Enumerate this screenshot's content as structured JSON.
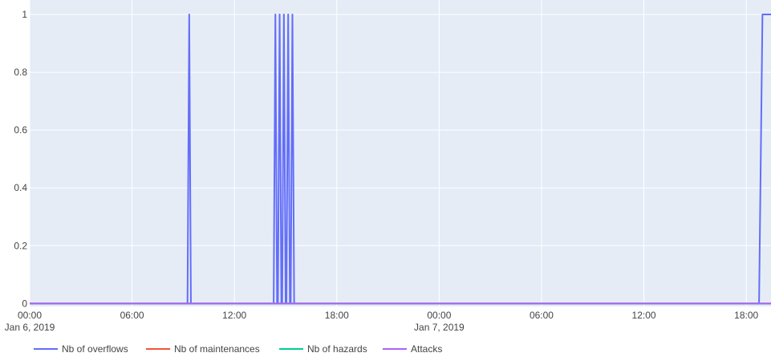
{
  "chart_data": {
    "type": "line",
    "x_unit": "hours",
    "x_range": [
      0,
      43.45
    ],
    "ylim": [
      -0.06,
      1.0
    ],
    "grid": true,
    "legend_position": "bottom-left",
    "plot_background": "#e5ecf6",
    "x_ticks": [
      {
        "x": 0,
        "label": "00:00",
        "sublabel": "Jan 6, 2019"
      },
      {
        "x": 6,
        "label": "06:00",
        "sublabel": ""
      },
      {
        "x": 12,
        "label": "12:00",
        "sublabel": ""
      },
      {
        "x": 18,
        "label": "18:00",
        "sublabel": ""
      },
      {
        "x": 24,
        "label": "00:00",
        "sublabel": "Jan 7, 2019"
      },
      {
        "x": 30,
        "label": "06:00",
        "sublabel": ""
      },
      {
        "x": 36,
        "label": "12:00",
        "sublabel": ""
      },
      {
        "x": 42,
        "label": "18:00",
        "sublabel": ""
      }
    ],
    "y_ticks": [
      {
        "y": 0,
        "label": "0"
      },
      {
        "y": 0.2,
        "label": "0.2"
      },
      {
        "y": 0.4,
        "label": "0.4"
      },
      {
        "y": 0.6,
        "label": "0.6"
      },
      {
        "y": 0.8,
        "label": "0.8"
      },
      {
        "y": 1,
        "label": "1"
      }
    ],
    "series": [
      {
        "name": "Nb of overflows",
        "color": "#636efa",
        "points": [
          [
            0,
            0
          ],
          [
            9.25,
            0
          ],
          [
            9.35,
            1
          ],
          [
            9.45,
            0
          ],
          [
            14.3,
            0
          ],
          [
            14.4,
            1
          ],
          [
            14.5,
            0
          ],
          [
            14.55,
            0
          ],
          [
            14.65,
            1
          ],
          [
            14.75,
            0
          ],
          [
            14.8,
            0
          ],
          [
            14.9,
            1
          ],
          [
            15.0,
            0
          ],
          [
            15.05,
            0
          ],
          [
            15.15,
            1
          ],
          [
            15.25,
            0
          ],
          [
            15.3,
            0
          ],
          [
            15.4,
            1
          ],
          [
            15.5,
            0
          ],
          [
            42.75,
            0
          ],
          [
            42.95,
            1
          ],
          [
            43.45,
            1
          ]
        ]
      },
      {
        "name": "Nb of maintenances",
        "color": "#ef553b",
        "points": [
          [
            0,
            0
          ],
          [
            43.45,
            0
          ]
        ]
      },
      {
        "name": "Nb of hazards",
        "color": "#00cc96",
        "points": [
          [
            0,
            0
          ],
          [
            43.45,
            0
          ]
        ]
      },
      {
        "name": "Attacks",
        "color": "#ab63fa",
        "points": [
          [
            0,
            0
          ],
          [
            43.45,
            0
          ]
        ]
      }
    ]
  }
}
